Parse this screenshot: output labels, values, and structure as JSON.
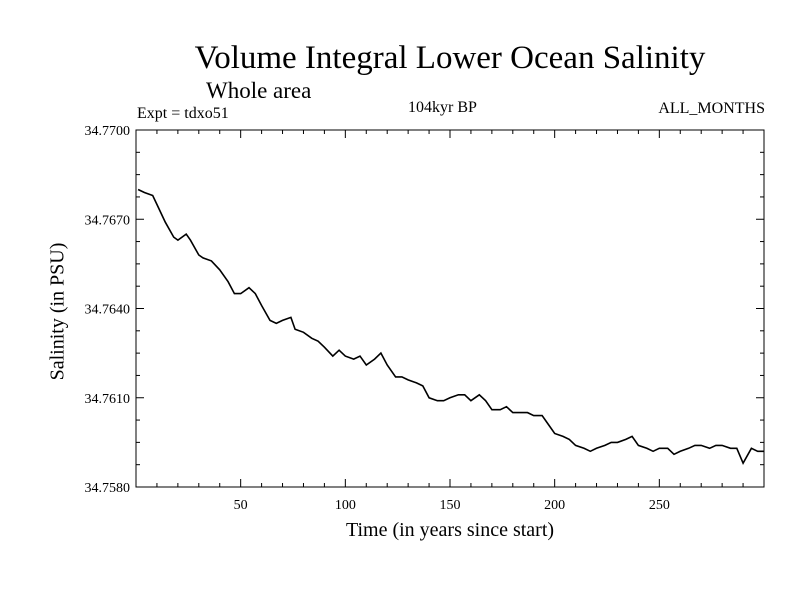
{
  "chart_data": {
    "type": "line",
    "title": "Volume Integral Lower Ocean Salinity",
    "subtitle": "Whole area",
    "experiment": "Expt = tdxo51",
    "period": "104kyr BP",
    "months": "ALL_MONTHS",
    "xlabel": "Time (in years since start)",
    "ylabel": "Salinity (in PSU)",
    "xlim": [
      0,
      300
    ],
    "ylim": [
      34.758,
      34.77
    ],
    "xticks": [
      50,
      100,
      150,
      200,
      250
    ],
    "yticks": [
      "34.7580",
      "34.7610",
      "34.7640",
      "34.7670",
      "34.7700"
    ],
    "series": [
      {
        "name": "salinity",
        "x": [
          1,
          4,
          8,
          10,
          14,
          18,
          20,
          24,
          26,
          30,
          32,
          36,
          40,
          44,
          47,
          50,
          54,
          57,
          60,
          64,
          67,
          70,
          74,
          76,
          80,
          84,
          87,
          90,
          94,
          97,
          100,
          104,
          107,
          110,
          114,
          117,
          120,
          124,
          127,
          130,
          134,
          137,
          140,
          144,
          147,
          150,
          154,
          157,
          160,
          164,
          167,
          170,
          174,
          177,
          180,
          184,
          187,
          190,
          194,
          197,
          200,
          204,
          207,
          210,
          214,
          217,
          220,
          224,
          227,
          230,
          234,
          237,
          240,
          244,
          247,
          250,
          254,
          257,
          260,
          264,
          267,
          270,
          274,
          277,
          280,
          284,
          287,
          290,
          294,
          297,
          300
        ],
        "values": [
          34.768,
          34.7679,
          34.7678,
          34.7675,
          34.7669,
          34.7664,
          34.7663,
          34.7665,
          34.7663,
          34.7658,
          34.7657,
          34.7656,
          34.7653,
          34.7649,
          34.7645,
          34.7645,
          34.7647,
          34.7645,
          34.7641,
          34.7636,
          34.7635,
          34.7636,
          34.7637,
          34.7633,
          34.7632,
          34.763,
          34.7629,
          34.7627,
          34.7624,
          34.7626,
          34.7624,
          34.7623,
          34.7624,
          34.7621,
          34.7623,
          34.7625,
          34.7621,
          34.7617,
          34.7617,
          34.7616,
          34.7615,
          34.7614,
          34.761,
          34.7609,
          34.7609,
          34.761,
          34.7611,
          34.7611,
          34.7609,
          34.7611,
          34.7609,
          34.7606,
          34.7606,
          34.7607,
          34.7605,
          34.7605,
          34.7605,
          34.7604,
          34.7604,
          34.7601,
          34.7598,
          34.7597,
          34.7596,
          34.7594,
          34.7593,
          34.7592,
          34.7593,
          34.7594,
          34.7595,
          34.7595,
          34.7596,
          34.7597,
          34.7594,
          34.7593,
          34.7592,
          34.7593,
          34.7593,
          34.7591,
          34.7592,
          34.7593,
          34.7594,
          34.7594,
          34.7593,
          34.7594,
          34.7594,
          34.7593,
          34.7593,
          34.7588,
          34.7593,
          34.7592,
          34.7592
        ]
      }
    ]
  }
}
